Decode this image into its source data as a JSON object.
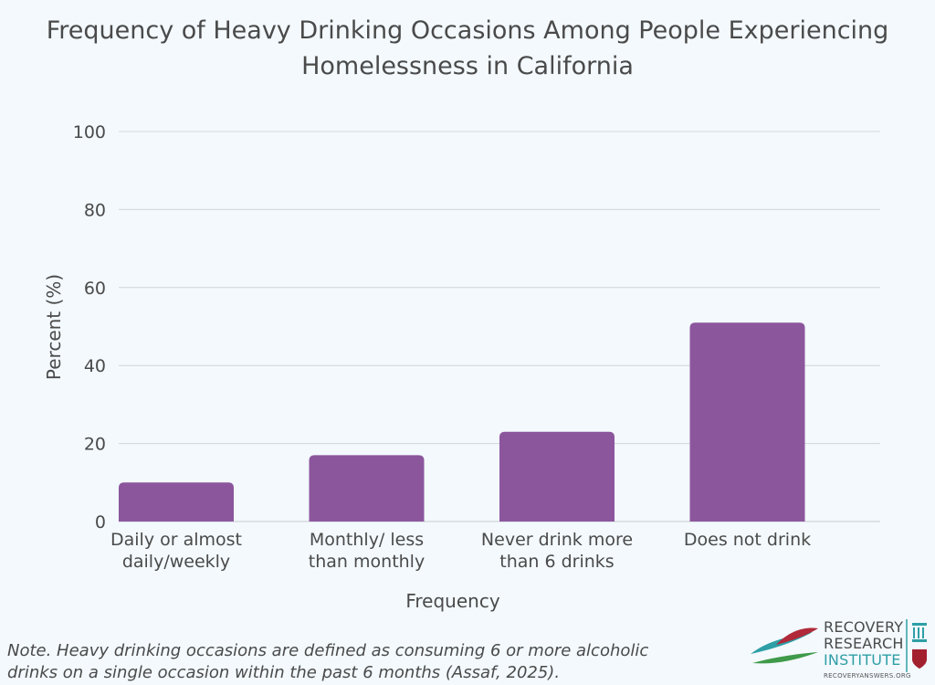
{
  "chart_data": {
    "type": "bar",
    "title": [
      "Frequency of Heavy Drinking Occasions Among People Experiencing",
      "Homelessness in California"
    ],
    "xlabel": "Frequency",
    "ylabel": "Percent (%)",
    "ylim": [
      0,
      100
    ],
    "yticks": [
      0,
      20,
      40,
      60,
      80,
      100
    ],
    "grid": true,
    "categories": [
      [
        "Daily or almost",
        "daily/weekly"
      ],
      [
        "Monthly/ less",
        "than monthly"
      ],
      [
        "Never drink more",
        "than 6 drinks"
      ],
      [
        "Does not drink"
      ]
    ],
    "values": [
      10,
      17,
      23,
      51
    ],
    "colors": {
      "bar": "#8c569d",
      "grid": "#d0d6dc",
      "axis": "#c7ccd1"
    }
  },
  "note": {
    "line1": "Note. Heavy drinking occasions are defined as consuming 6 or more alcoholic",
    "line2": "drinks on a single occasion within the past 6 months (Assaf, 2025)."
  },
  "logo": {
    "line1": "RECOVERY",
    "line2": "RESEARCH",
    "line3": "INSTITUTE",
    "url": "RECOVERYANSWERS.ORG"
  }
}
